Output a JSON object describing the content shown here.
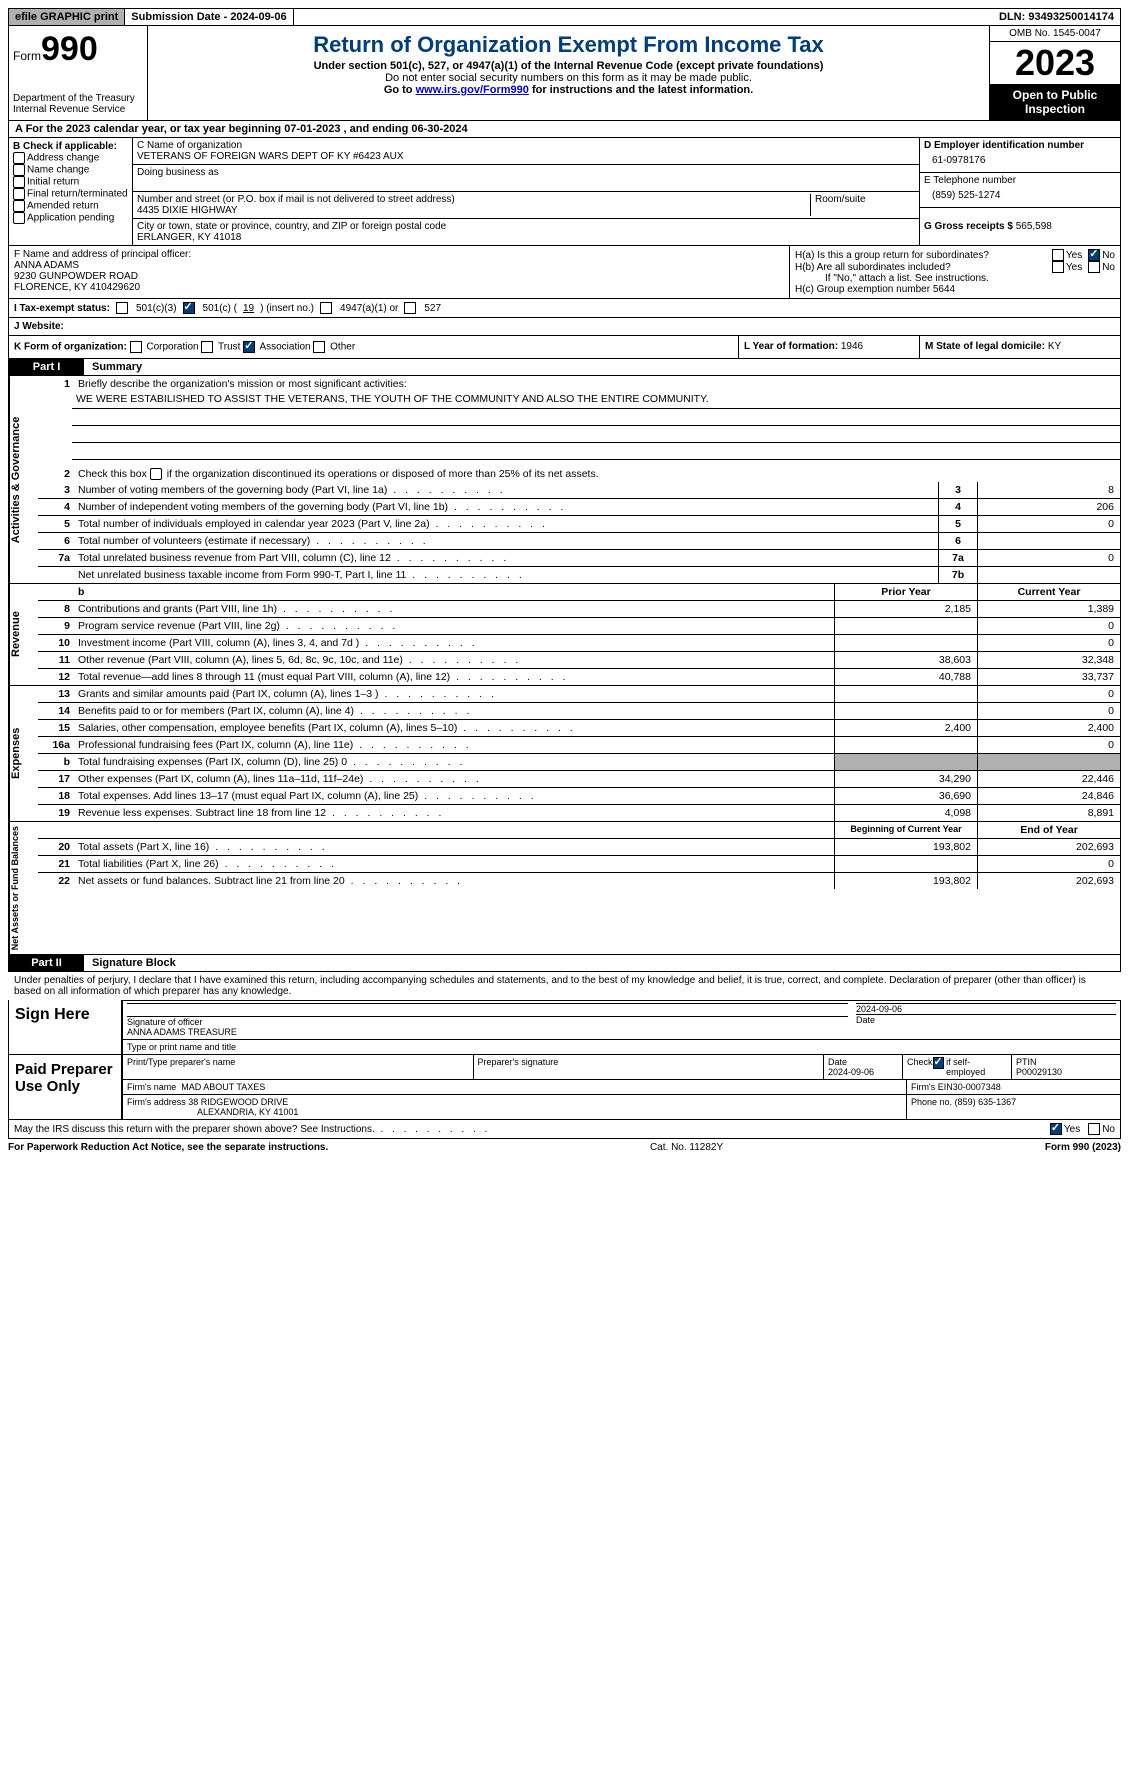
{
  "topbar": {
    "efile": "efile GRAPHIC print",
    "submission": "Submission Date - 2024-09-06",
    "dln": "DLN: 93493250014174"
  },
  "header": {
    "form_word": "Form",
    "form_num": "990",
    "dept": "Department of the Treasury Internal Revenue Service",
    "title": "Return of Organization Exempt From Income Tax",
    "subtitle": "Under section 501(c), 527, or 4947(a)(1) of the Internal Revenue Code (except private foundations)",
    "warn": "Do not enter social security numbers on this form as it may be made public.",
    "goto": "Go to ",
    "goto_link": "www.irs.gov/Form990",
    "goto_tail": " for instructions and the latest information.",
    "omb": "OMB No. 1545-0047",
    "year": "2023",
    "openpub": "Open to Public Inspection"
  },
  "A": {
    "text": "A For the 2023 calendar year, or tax year beginning 07-01-2023   , and ending 06-30-2024"
  },
  "B": {
    "title": "B Check if applicable:",
    "items": [
      "Address change",
      "Name change",
      "Initial return",
      "Final return/terminated",
      "Amended return",
      "Application pending"
    ]
  },
  "C": {
    "name_label": "C Name of organization",
    "name_value": "VETERANS OF FOREIGN WARS DEPT OF KY #6423 AUX",
    "dba_label": "Doing business as",
    "street_label": "Number and street (or P.O. box if mail is not delivered to street address)",
    "street_value": "4435 DIXIE HIGHWAY",
    "room_label": "Room/suite",
    "city_label": "City or town, state or province, country, and ZIP or foreign postal code",
    "city_value": "ERLANGER, KY  41018"
  },
  "D": {
    "label": "D Employer identification number",
    "value": "61-0978176"
  },
  "E": {
    "label": "E Telephone number",
    "value": "(859) 525-1274"
  },
  "G": {
    "label": "G Gross receipts $",
    "value": "565,598"
  },
  "F": {
    "label": "F  Name and address of principal officer:",
    "name": "ANNA ADAMS",
    "addr1": "9230 GUNPOWDER ROAD",
    "addr2": "FLORENCE, KY  410429620"
  },
  "H": {
    "a": "H(a)  Is this a group return for subordinates?",
    "b": "H(b)  Are all subordinates included?",
    "b_note": "If \"No,\" attach a list. See instructions.",
    "c_label": "H(c)  Group exemption number  ",
    "c_value": "5644",
    "yes": "Yes",
    "no": "No"
  },
  "I": {
    "label": "I  Tax-exempt status:",
    "opt1": "501(c)(3)",
    "opt2a": "501(c) (",
    "opt2_num": "19",
    "opt2b": ") (insert no.)",
    "opt3": "4947(a)(1) or",
    "opt4": "527"
  },
  "J": {
    "label": "J  Website: "
  },
  "K": {
    "label": "K Form of organization:",
    "opts": [
      "Corporation",
      "Trust",
      "Association",
      "Other"
    ],
    "checked_idx": 2
  },
  "L": {
    "label": "L Year of formation:",
    "value": "1946"
  },
  "M": {
    "label": "M State of legal domicile:",
    "value": "KY"
  },
  "part1": {
    "label": "Part I",
    "title": "Summary"
  },
  "summary": {
    "q1_label": "1",
    "q1_text": "Briefly describe the organization's mission or most significant activities:",
    "q1_value": "WE WERE ESTABILISHED TO ASSIST THE VETERANS, THE YOUTH OF THE COMMUNITY AND ALSO THE ENTIRE COMMUNITY.",
    "q2_label": "2",
    "q2_text": "Check this box       if the organization discontinued its operations or disposed of more than 25% of its net assets.",
    "prior_hdr": "Prior Year",
    "curr_hdr": "Current Year",
    "boy_hdr": "Beginning of Current Year",
    "eoy_hdr": "End of Year",
    "gov_rows": [
      {
        "n": "3",
        "t": "Number of voting members of the governing body (Part VI, line 1a)",
        "c": "3",
        "v": "8"
      },
      {
        "n": "4",
        "t": "Number of independent voting members of the governing body (Part VI, line 1b)",
        "c": "4",
        "v": "206"
      },
      {
        "n": "5",
        "t": "Total number of individuals employed in calendar year 2023 (Part V, line 2a)",
        "c": "5",
        "v": "0"
      },
      {
        "n": "6",
        "t": "Total number of volunteers (estimate if necessary)",
        "c": "6",
        "v": ""
      },
      {
        "n": "7a",
        "t": "Total unrelated business revenue from Part VIII, column (C), line 12",
        "c": "7a",
        "v": "0"
      },
      {
        "n": "",
        "t": "Net unrelated business taxable income from Form 990-T, Part I, line 11",
        "c": "7b",
        "v": ""
      }
    ],
    "rev_rows": [
      {
        "n": "8",
        "t": "Contributions and grants (Part VIII, line 1h)",
        "p": "2,185",
        "c": "1,389"
      },
      {
        "n": "9",
        "t": "Program service revenue (Part VIII, line 2g)",
        "p": "",
        "c": "0"
      },
      {
        "n": "10",
        "t": "Investment income (Part VIII, column (A), lines 3, 4, and 7d )",
        "p": "",
        "c": "0"
      },
      {
        "n": "11",
        "t": "Other revenue (Part VIII, column (A), lines 5, 6d, 8c, 9c, 10c, and 11e)",
        "p": "38,603",
        "c": "32,348"
      },
      {
        "n": "12",
        "t": "Total revenue—add lines 8 through 11 (must equal Part VIII, column (A), line 12)",
        "p": "40,788",
        "c": "33,737"
      }
    ],
    "exp_rows": [
      {
        "n": "13",
        "t": "Grants and similar amounts paid (Part IX, column (A), lines 1–3 )",
        "p": "",
        "c": "0"
      },
      {
        "n": "14",
        "t": "Benefits paid to or for members (Part IX, column (A), line 4)",
        "p": "",
        "c": "0"
      },
      {
        "n": "15",
        "t": "Salaries, other compensation, employee benefits (Part IX, column (A), lines 5–10)",
        "p": "2,400",
        "c": "2,400"
      },
      {
        "n": "16a",
        "t": "Professional fundraising fees (Part IX, column (A), line 11e)",
        "p": "",
        "c": "0"
      },
      {
        "n": "b",
        "t": "Total fundraising expenses (Part IX, column (D), line 25) 0",
        "p": "shade",
        "c": "shade"
      },
      {
        "n": "17",
        "t": "Other expenses (Part IX, column (A), lines 11a–11d, 11f–24e)",
        "p": "34,290",
        "c": "22,446"
      },
      {
        "n": "18",
        "t": "Total expenses. Add lines 13–17 (must equal Part IX, column (A), line 25)",
        "p": "36,690",
        "c": "24,846"
      },
      {
        "n": "19",
        "t": "Revenue less expenses. Subtract line 18 from line 12",
        "p": "4,098",
        "c": "8,891"
      }
    ],
    "net_rows": [
      {
        "n": "20",
        "t": "Total assets (Part X, line 16)",
        "p": "193,802",
        "c": "202,693"
      },
      {
        "n": "21",
        "t": "Total liabilities (Part X, line 26)",
        "p": "",
        "c": "0"
      },
      {
        "n": "22",
        "t": "Net assets or fund balances. Subtract line 21 from line 20",
        "p": "193,802",
        "c": "202,693"
      }
    ],
    "tabs": {
      "gov": "Activities & Governance",
      "rev": "Revenue",
      "exp": "Expenses",
      "net": "Net Assets or Fund Balances"
    }
  },
  "part2": {
    "label": "Part II",
    "title": "Signature Block"
  },
  "sig": {
    "decl": "Under penalties of perjury, I declare that I have examined this return, including accompanying schedules and statements, and to the best of my knowledge and belief, it is true, correct, and complete. Declaration of preparer (other than officer) is based on all information of which preparer has any knowledge.",
    "sign_here": "Sign Here",
    "sig_officer": "Signature of officer",
    "officer_name": "ANNA ADAMS TREASURE",
    "type_name": "Type or print name and title",
    "date_label": "Date",
    "date_value": "2024-09-06",
    "paid": "Paid Preparer Use Only",
    "prep_name_label": "Print/Type preparer's name",
    "prep_sig_label": "Preparer's signature",
    "prep_date_label": "Date",
    "prep_date": "2024-09-06",
    "self_emp": "Check        if self-employed",
    "ptin_label": "PTIN",
    "ptin": "P00029130",
    "firm_name_label": "Firm's name   ",
    "firm_name": "MAD ABOUT TAXES",
    "firm_ein_label": "Firm's EIN  ",
    "firm_ein": "30-0007348",
    "firm_addr_label": "Firm's address ",
    "firm_addr1": "38 RIDGEWOOD DRIVE",
    "firm_addr2": "ALEXANDRIA, KY  41001",
    "phone_label": "Phone no.",
    "phone": "(859) 635-1367",
    "discuss": "May the IRS discuss this return with the preparer shown above? See Instructions."
  },
  "footer": {
    "left": "For Paperwork Reduction Act Notice, see the separate instructions.",
    "mid": "Cat. No. 11282Y",
    "right": "Form 990 (2023)"
  }
}
